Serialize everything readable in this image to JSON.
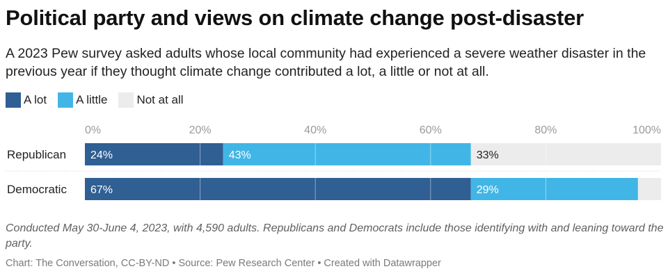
{
  "title": "Political party and views on climate change post-disaster",
  "subtitle": "A 2023 Pew survey asked adults whose local community had experienced a severe weather disaster in the previous year if they thought climate change contributed a lot, a little or not at all.",
  "legend": [
    {
      "label": "A lot",
      "color": "#2f5f93"
    },
    {
      "label": "A little",
      "color": "#41b6e6"
    },
    {
      "label": "Not at all",
      "color": "#ececec"
    }
  ],
  "notes": "Conducted May 30-June 4, 2023, with 4,590 adults. Republicans and Democrats include those identifying with and leaning toward the party.",
  "byline": "Chart: The Conversation, CC-BY-ND • Source: Pew Research Center • Created with Datawrapper",
  "chart_data": {
    "type": "bar",
    "stacked": true,
    "orientation": "horizontal",
    "categories": [
      "Republican",
      "Democratic"
    ],
    "series": [
      {
        "name": "A lot",
        "values": [
          24,
          67
        ],
        "labels": [
          "24%",
          "67%"
        ],
        "color": "#2f5f93"
      },
      {
        "name": "A little",
        "values": [
          43,
          29
        ],
        "labels": [
          "43%",
          "29%"
        ],
        "color": "#41b6e6"
      },
      {
        "name": "Not at all",
        "values": [
          33,
          4
        ],
        "labels": [
          "33%",
          ""
        ],
        "color": "#ececec"
      }
    ],
    "xlim": [
      0,
      100
    ],
    "ticks": [
      0,
      20,
      40,
      60,
      80,
      100
    ],
    "tick_labels": [
      "0%",
      "20%",
      "40%",
      "60%",
      "80%",
      "100%"
    ],
    "grid": true,
    "legend": "top-left"
  }
}
